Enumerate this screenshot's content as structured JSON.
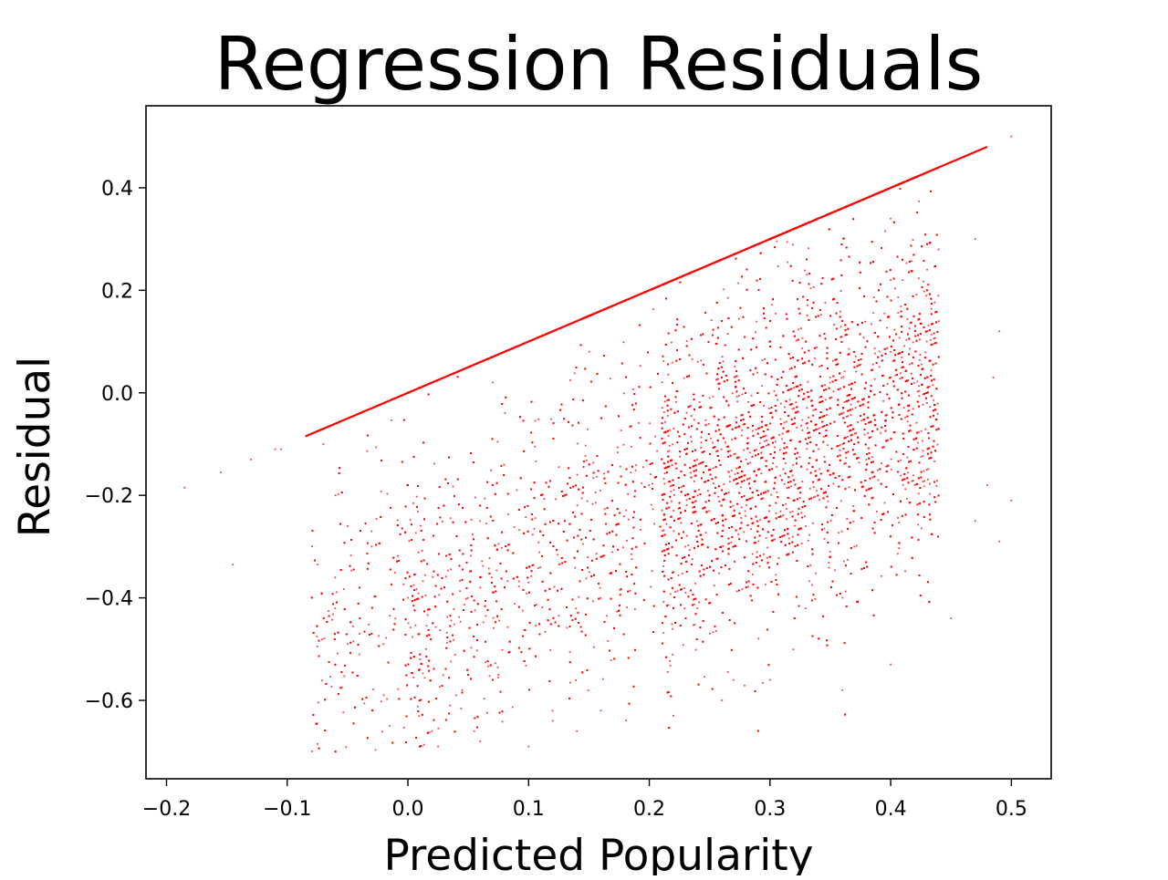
{
  "chart_data": {
    "type": "scatter",
    "title": "Regression Residuals",
    "xlabel": "Predicted Popularity",
    "ylabel": "Residual",
    "xlim": [
      -0.217,
      0.533
    ],
    "ylim": [
      -0.753,
      0.56
    ],
    "x_ticks": [
      -0.2,
      -0.1,
      0.0,
      0.1,
      0.2,
      0.3,
      0.4,
      0.5
    ],
    "x_tick_labels": [
      "−0.2",
      "−0.1",
      "0.0",
      "0.1",
      "0.2",
      "0.3",
      "0.4",
      "0.5"
    ],
    "y_ticks": [
      -0.6,
      -0.4,
      -0.2,
      0.0,
      0.2,
      0.4
    ],
    "y_tick_labels": [
      "−0.6",
      "−0.4",
      "−0.2",
      "0.0",
      "0.2",
      "0.4"
    ],
    "grid": false,
    "marker_color": "#ff0000",
    "series": [
      {
        "note_on_points": "",
        "boundary_line": {
          "x": [
            -0.085,
            0.48
          ],
          "y": [
            -0.085,
            0.48
          ]
        },
        "points": [
          [
            -0.185,
            -0.185
          ],
          [
            -0.155,
            -0.155
          ],
          [
            -0.145,
            -0.335
          ],
          [
            -0.13,
            -0.13
          ],
          [
            -0.11,
            -0.11
          ],
          [
            -0.105,
            -0.11
          ],
          [
            -0.07,
            -0.1
          ],
          [
            -0.06,
            -0.2
          ],
          [
            -0.05,
            -0.26
          ],
          [
            -0.04,
            -0.47
          ],
          [
            -0.03,
            -0.3
          ],
          [
            -0.02,
            -0.59
          ],
          [
            -0.015,
            -0.65
          ],
          [
            0.0,
            -0.4
          ],
          [
            0.01,
            -0.52
          ],
          [
            0.015,
            -0.5
          ],
          [
            0.02,
            -0.66
          ],
          [
            0.025,
            -0.69
          ],
          [
            0.035,
            -0.61
          ],
          [
            0.045,
            -0.58
          ],
          [
            0.055,
            -0.66
          ],
          [
            0.075,
            -0.55
          ],
          [
            0.1,
            -0.69
          ],
          [
            0.12,
            -0.64
          ],
          [
            0.14,
            -0.66
          ],
          [
            0.16,
            -0.62
          ],
          [
            0.22,
            -0.63
          ],
          [
            0.26,
            -0.6
          ],
          [
            0.3,
            -0.56
          ],
          [
            0.36,
            -0.58
          ],
          [
            0.4,
            -0.53
          ],
          [
            0.45,
            -0.44
          ],
          [
            0.47,
            -0.25
          ],
          [
            0.48,
            -0.18
          ],
          [
            0.49,
            -0.29
          ],
          [
            0.5,
            -0.21
          ],
          [
            0.5,
            0.5
          ],
          [
            0.49,
            0.12
          ],
          [
            0.485,
            0.03
          ],
          [
            0.47,
            0.3
          ]
        ]
      }
    ]
  }
}
